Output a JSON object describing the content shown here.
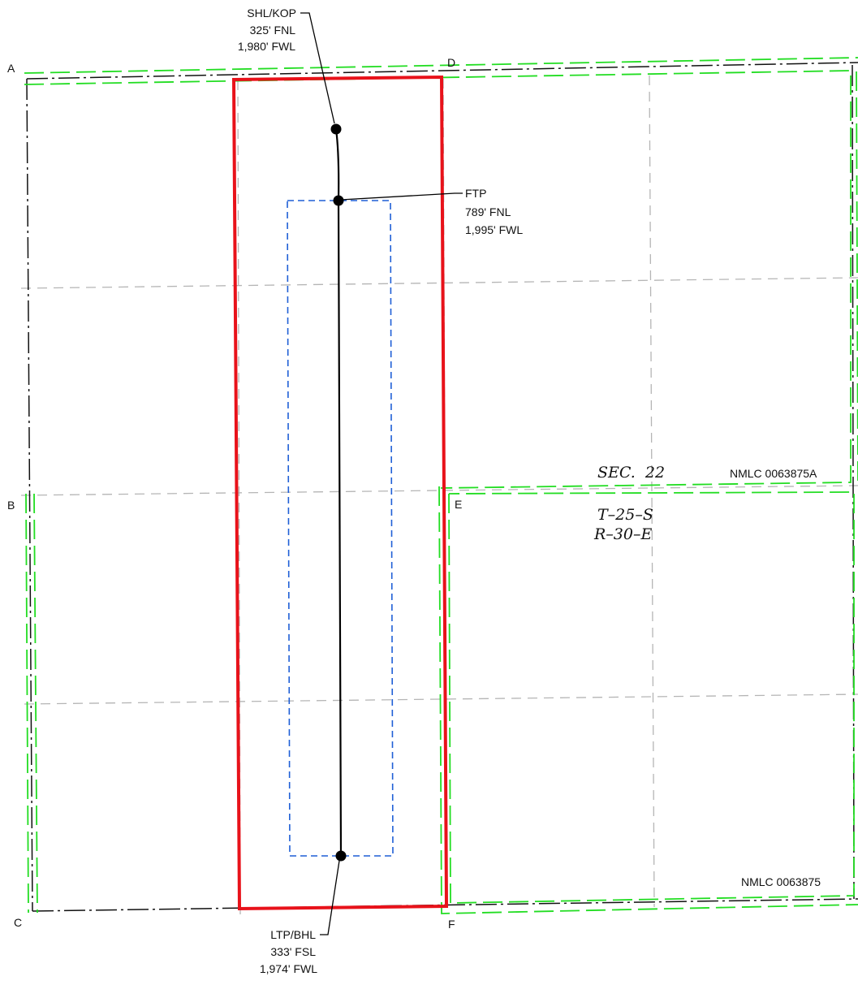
{
  "corners": {
    "a": "A",
    "b": "B",
    "c": "C",
    "d": "D",
    "e": "E",
    "f": "F"
  },
  "shl": {
    "line1": "SHL/KOP",
    "line2": "325' FNL",
    "line3": "1,980' FWL"
  },
  "ftp": {
    "line1": "FTP",
    "line2": "789' FNL",
    "line3": "1,995' FWL"
  },
  "ltp": {
    "line1": "LTP/BHL",
    "line2": "333' FSL",
    "line3": "1,974' FWL"
  },
  "section": {
    "sec": "SEC.  22",
    "township": "T–25–S",
    "range": "R–30–E"
  },
  "leases": {
    "north": "NMLC 0063875A",
    "south": "NMLC 0063875"
  },
  "colors": {
    "spacing_unit": "#e8121a",
    "setback": "#1f5fd6",
    "lease": "#22dd22",
    "section_line": "#111111",
    "quarter_line": "#b5b5b5",
    "wellbore": "#000000"
  }
}
